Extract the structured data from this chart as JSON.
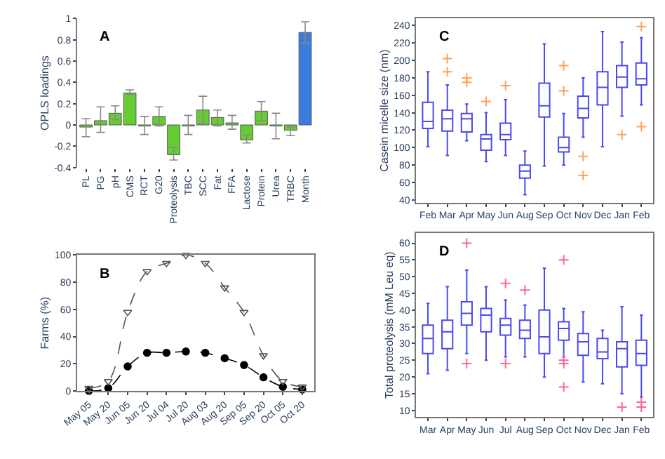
{
  "chart_data": [
    {
      "type": "bar",
      "annotations": [
        "A"
      ],
      "ylabel": "OPLS loadings",
      "categories": [
        "PL",
        "PG",
        "pH",
        "CMS",
        "RCT",
        "G20",
        "Proteolysis",
        "TBC",
        "SCC",
        "Fat",
        "FFA",
        "Lactose",
        "Protein",
        "Urea",
        "TRBC",
        "Month"
      ],
      "values": [
        -0.02,
        0.04,
        0.11,
        0.3,
        -0.01,
        0.08,
        -0.28,
        -0.01,
        0.14,
        0.07,
        0.02,
        -0.14,
        0.13,
        -0.01,
        -0.05,
        0.87
      ],
      "colors": [
        "#66cc33",
        "#66cc33",
        "#66cc33",
        "#66cc33",
        "#66cc33",
        "#66cc33",
        "#66cc33",
        "#66cc33",
        "#66cc33",
        "#66cc33",
        "#66cc33",
        "#66cc33",
        "#66cc33",
        "#66cc33",
        "#66cc33",
        "#3b7ddd"
      ],
      "errors": [
        [
          -0.11,
          0.06
        ],
        [
          -0.07,
          0.17
        ],
        [
          0.05,
          0.18
        ],
        [
          0.29,
          0.33
        ],
        [
          -0.09,
          0.08
        ],
        [
          -0.01,
          0.17
        ],
        [
          -0.33,
          -0.21
        ],
        [
          -0.09,
          0.09
        ],
        [
          0.01,
          0.27
        ],
        [
          -0.01,
          0.14
        ],
        [
          -0.04,
          0.09
        ],
        [
          -0.17,
          -0.1
        ],
        [
          0.04,
          0.22
        ],
        [
          -0.13,
          0.11
        ],
        [
          -0.1,
          -0.02
        ],
        [
          0.77,
          0.97
        ]
      ],
      "ylim": [
        -0.4,
        1
      ],
      "yticks": [
        -0.4,
        -0.2,
        0,
        0.2,
        0.4,
        0.6,
        0.8,
        1
      ]
    },
    {
      "type": "line",
      "annotations": [
        "B"
      ],
      "ylabel": "Farms (%)",
      "line_style": "dashed",
      "categories": [
        "May 05",
        "May 20",
        "Jun 05",
        "Jun 20",
        "Jul 04",
        "Jul 20",
        "Aug 03",
        "Aug 20",
        "Sep 05",
        "Sep 20",
        "Oct 05",
        "Oct 20"
      ],
      "series": [
        {
          "color": "#555555",
          "marker": "triangle",
          "values": [
            2,
            7,
            58,
            88,
            94,
            100,
            94,
            76,
            58,
            26,
            7,
            3
          ]
        },
        {
          "color": "#000000",
          "marker": "circle",
          "values": [
            0,
            2,
            18,
            28,
            28,
            29,
            28,
            24,
            19,
            10,
            3,
            1
          ]
        }
      ],
      "ylim": [
        0,
        100
      ],
      "yticks": [
        0,
        20,
        40,
        60,
        80,
        100
      ]
    },
    {
      "type": "box",
      "annotations": [
        "C"
      ],
      "ylabel": "Casein micelle size (nm)",
      "categories": [
        "Feb",
        "Mar",
        "Apr",
        "May",
        "Jun",
        "Aug",
        "Sep",
        "Oct",
        "Nov",
        "Dec",
        "Jan",
        "Feb"
      ],
      "series": [
        {
          "color": "#4a4aee",
          "boxes": [
            {
              "low": 101,
              "q1": 122,
              "median": 130,
              "q3": 152,
              "high": 187
            },
            {
              "low": 91,
              "q1": 119,
              "median": 133,
              "q3": 143,
              "high": 172,
              "outliers": [
                187,
                202
              ]
            },
            {
              "low": 108,
              "q1": 118,
              "median": 133,
              "q3": 139,
              "high": 150,
              "outliers": [
                175,
                180
              ]
            },
            {
              "low": 84,
              "q1": 97,
              "median": 110,
              "q3": 115,
              "high": 140,
              "outliers": [
                153
              ]
            },
            {
              "low": 91,
              "q1": 109,
              "median": 115,
              "q3": 128,
              "high": 155,
              "outliers": [
                171
              ]
            },
            {
              "low": 46,
              "q1": 65,
              "median": 73,
              "q3": 80,
              "high": 96
            },
            {
              "low": 79,
              "q1": 135,
              "median": 148,
              "q3": 174,
              "high": 219
            },
            {
              "low": 80,
              "q1": 95,
              "median": 100,
              "q3": 112,
              "high": 139,
              "outliers": [
                165,
                194
              ]
            },
            {
              "low": 112,
              "q1": 134,
              "median": 145,
              "q3": 159,
              "high": 180,
              "outliers": [
                68,
                90
              ]
            },
            {
              "low": 101,
              "q1": 149,
              "median": 169,
              "q3": 187,
              "high": 233
            },
            {
              "low": 136,
              "q1": 169,
              "median": 181,
              "q3": 194,
              "high": 221,
              "outliers": [
                115
              ]
            },
            {
              "low": 149,
              "q1": 172,
              "median": 179,
              "q3": 197,
              "high": 226,
              "outliers": [
                124,
                239
              ]
            }
          ]
        }
      ],
      "ylim": [
        37,
        248
      ],
      "yticks": [
        40,
        60,
        80,
        100,
        120,
        140,
        160,
        180,
        200,
        220,
        240
      ]
    },
    {
      "type": "box",
      "annotations": [
        "D"
      ],
      "ylabel": "Total proteolysis (mM Leu eq)",
      "categories": [
        "Mar",
        "Apr",
        "May",
        "Jun",
        "Jul",
        "Aug",
        "Sep",
        "Oct",
        "Nov",
        "Dec",
        "Jan",
        "Feb"
      ],
      "series": [
        {
          "color": "#4a4aee",
          "boxes": [
            {
              "low": 21,
              "q1": 27,
              "median": 31.5,
              "q3": 35.5,
              "high": 42
            },
            {
              "low": 22,
              "q1": 28.5,
              "median": 33.5,
              "q3": 37,
              "high": 47
            },
            {
              "low": 27,
              "q1": 35.5,
              "median": 39,
              "q3": 42.5,
              "high": 52,
              "outliers": [
                24,
                60
              ]
            },
            {
              "low": 25,
              "q1": 33.5,
              "median": 38.5,
              "q3": 40.5,
              "high": 47
            },
            {
              "low": 26,
              "q1": 32.5,
              "median": 35.5,
              "q3": 37.5,
              "high": 43,
              "outliers": [
                24,
                48
              ]
            },
            {
              "low": 26,
              "q1": 31.5,
              "median": 34,
              "q3": 37,
              "high": 41.5,
              "outliers": [
                46
              ]
            },
            {
              "low": 20,
              "q1": 27,
              "median": 32,
              "q3": 40,
              "high": 52.5
            },
            {
              "low": 26,
              "q1": 31,
              "median": 34.5,
              "q3": 36.5,
              "high": 40.5,
              "outliers": [
                17,
                24,
                25,
                55
              ]
            },
            {
              "low": 18.5,
              "q1": 26.5,
              "median": 30.5,
              "q3": 33,
              "high": 39.5
            },
            {
              "low": 18,
              "q1": 25.5,
              "median": 27.5,
              "q3": 31.5,
              "high": 34
            },
            {
              "low": 15,
              "q1": 23,
              "median": 28.5,
              "q3": 30.5,
              "high": 41,
              "outliers": [
                11
              ]
            },
            {
              "low": 14,
              "q1": 23.5,
              "median": 27,
              "q3": 31,
              "high": 38.5,
              "outliers": [
                11,
                12.5
              ]
            }
          ]
        }
      ],
      "ylim": [
        8,
        63
      ],
      "yticks": [
        10,
        15,
        20,
        25,
        30,
        35,
        40,
        45,
        50,
        55,
        60
      ]
    }
  ]
}
